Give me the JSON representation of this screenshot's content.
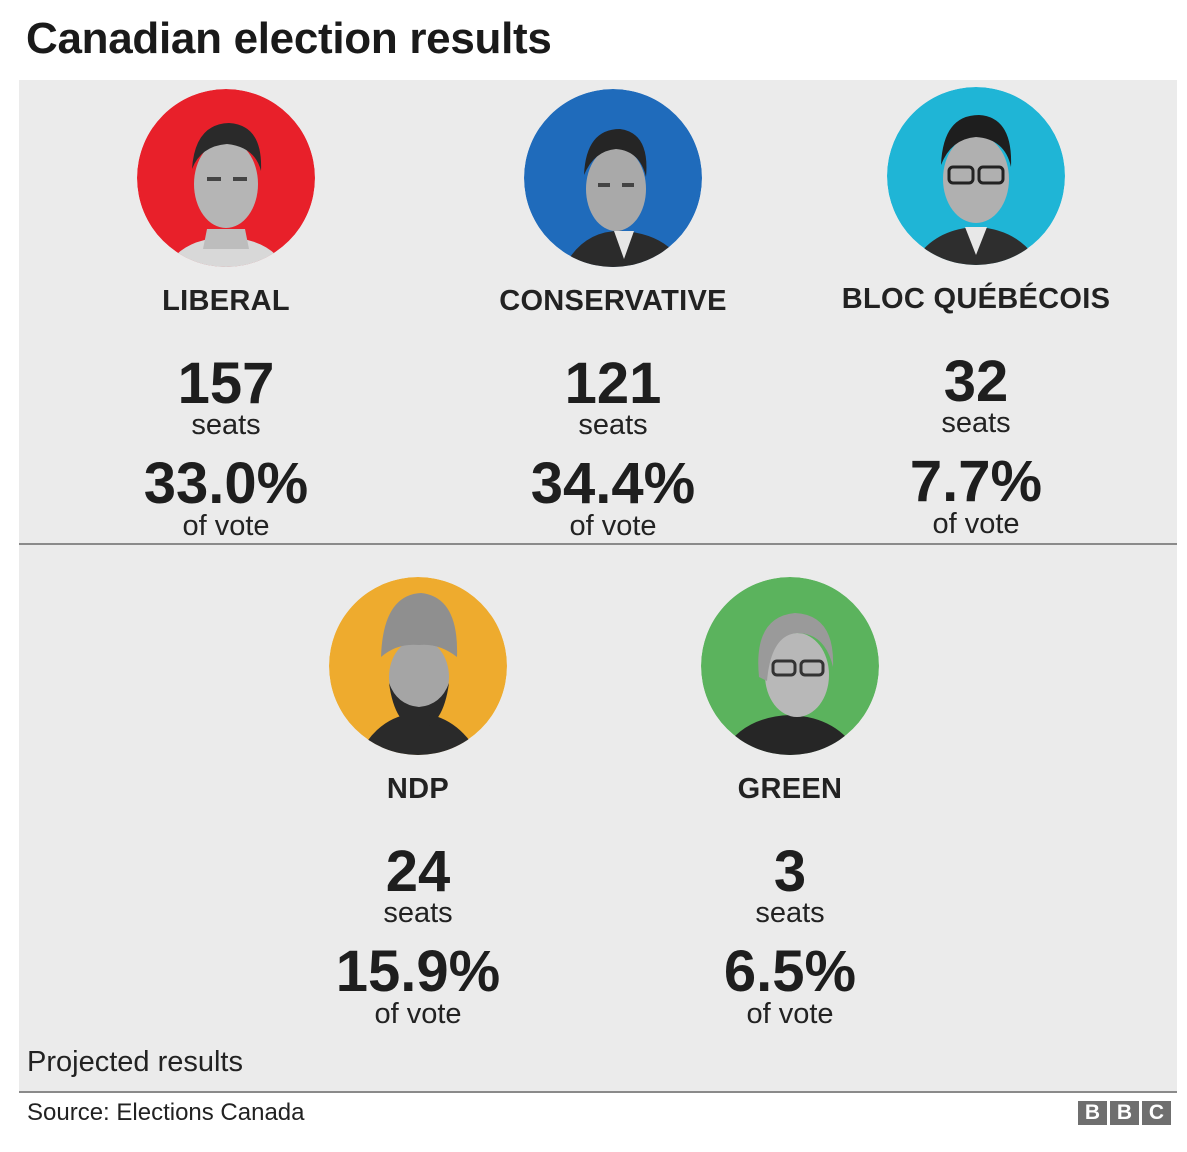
{
  "title": "Canadian election results",
  "parties": [
    {
      "name": "LIBERAL",
      "seats": "157",
      "seats_label": "seats",
      "vote": "33.0%",
      "vote_label": "of vote",
      "color": "#e8202a"
    },
    {
      "name": "CONSERVATIVE",
      "seats": "121",
      "seats_label": "seats",
      "vote": "34.4%",
      "vote_label": "of vote",
      "color": "#1f6bbb"
    },
    {
      "name": "BLOC QUÉBÉCOIS",
      "seats": "32",
      "seats_label": "seats",
      "vote": "7.7%",
      "vote_label": "of vote",
      "color": "#1fb5d6"
    },
    {
      "name": "NDP",
      "seats": "24",
      "seats_label": "seats",
      "vote": "15.9%",
      "vote_label": "of vote",
      "color": "#eeab2e"
    },
    {
      "name": "GREEN",
      "seats": "3",
      "seats_label": "seats",
      "vote": "6.5%",
      "vote_label": "of vote",
      "color": "#5bb35d"
    }
  ],
  "note": "Projected results",
  "source": "Source: Elections Canada",
  "logo_letters": [
    "B",
    "B",
    "C"
  ]
}
